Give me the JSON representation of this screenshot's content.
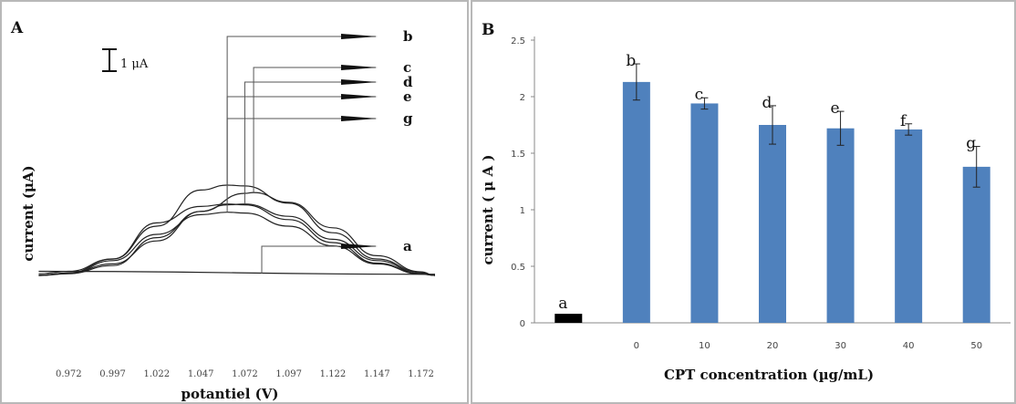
{
  "chart_data": [
    {
      "panel": "A",
      "type": "line",
      "xlabel": "potantiel (V)",
      "ylabel": "current (μA)",
      "scale_bar_label": "1 μA",
      "xticks": [
        "0.972",
        "0.997",
        "1.022",
        "1.047",
        "1.072",
        "1.097",
        "1.122",
        "1.147",
        "1.172"
      ],
      "xlim": [
        0.947,
        1.18
      ],
      "series": [
        {
          "name": "a",
          "x": [
            0.955,
            1.18
          ],
          "y": [
            0.25,
            0.07
          ]
        },
        {
          "name": "b",
          "x": [
            0.955,
            0.972,
            0.997,
            1.022,
            1.047,
            1.062,
            1.072,
            1.097,
            1.122,
            1.147,
            1.172,
            1.18
          ],
          "y": [
            0.1,
            0.25,
            1.0,
            3.0,
            5.2,
            5.5,
            5.45,
            4.4,
            2.6,
            1.0,
            0.18,
            0.0
          ]
        },
        {
          "name": "c",
          "x": [
            0.955,
            0.972,
            0.997,
            1.022,
            1.047,
            1.072,
            1.077,
            1.097,
            1.122,
            1.147,
            1.172,
            1.18
          ],
          "y": [
            0.0,
            0.15,
            0.7,
            2.1,
            3.9,
            5.0,
            5.05,
            4.45,
            2.9,
            1.2,
            0.22,
            0.0
          ]
        },
        {
          "name": "d",
          "x": [
            0.955,
            0.972,
            0.997,
            1.022,
            1.047,
            1.062,
            1.072,
            1.097,
            1.122,
            1.147,
            1.172,
            1.18
          ],
          "y": [
            0.0,
            0.12,
            0.6,
            2.3,
            3.9,
            4.3,
            4.35,
            3.6,
            2.2,
            0.9,
            0.12,
            0.0
          ]
        },
        {
          "name": "e",
          "x": [
            0.955,
            0.972,
            0.997,
            1.022,
            1.047,
            1.062,
            1.072,
            1.097,
            1.122,
            1.147,
            1.172,
            1.18
          ],
          "y": [
            0.0,
            0.15,
            1.0,
            3.2,
            4.2,
            4.35,
            4.3,
            3.4,
            2.0,
            0.75,
            0.1,
            0.0
          ]
        },
        {
          "name": "g",
          "x": [
            0.955,
            0.972,
            0.997,
            1.022,
            1.047,
            1.062,
            1.072,
            1.097,
            1.122,
            1.147,
            1.172,
            1.18
          ],
          "y": [
            0.0,
            0.1,
            0.9,
            2.5,
            3.7,
            3.85,
            3.8,
            3.0,
            1.8,
            0.7,
            0.08,
            0.0
          ]
        }
      ]
    },
    {
      "panel": "B",
      "type": "bar",
      "categories": [
        "",
        "0",
        "10",
        "20",
        "30",
        "40",
        "50"
      ],
      "values": [
        0.08,
        2.13,
        1.94,
        1.75,
        1.72,
        1.71,
        1.38
      ],
      "errors": [
        0,
        0.16,
        0.05,
        0.17,
        0.15,
        0.05,
        0.18
      ],
      "bar_labels": [
        "a",
        "b",
        "c",
        "d",
        "e",
        "f",
        "g"
      ],
      "xlabel": "CPT concentration (µg/mL)",
      "ylabel": "current ( μ A )",
      "yticks": [
        "0",
        "0.5",
        "1",
        "1.5",
        "2",
        "2.5"
      ],
      "ylim": [
        0,
        2.5
      ],
      "colors": {
        "control": "#000000",
        "series": "#4f81bd"
      }
    }
  ],
  "panels": {
    "a_label": "A",
    "b_label": "B"
  }
}
